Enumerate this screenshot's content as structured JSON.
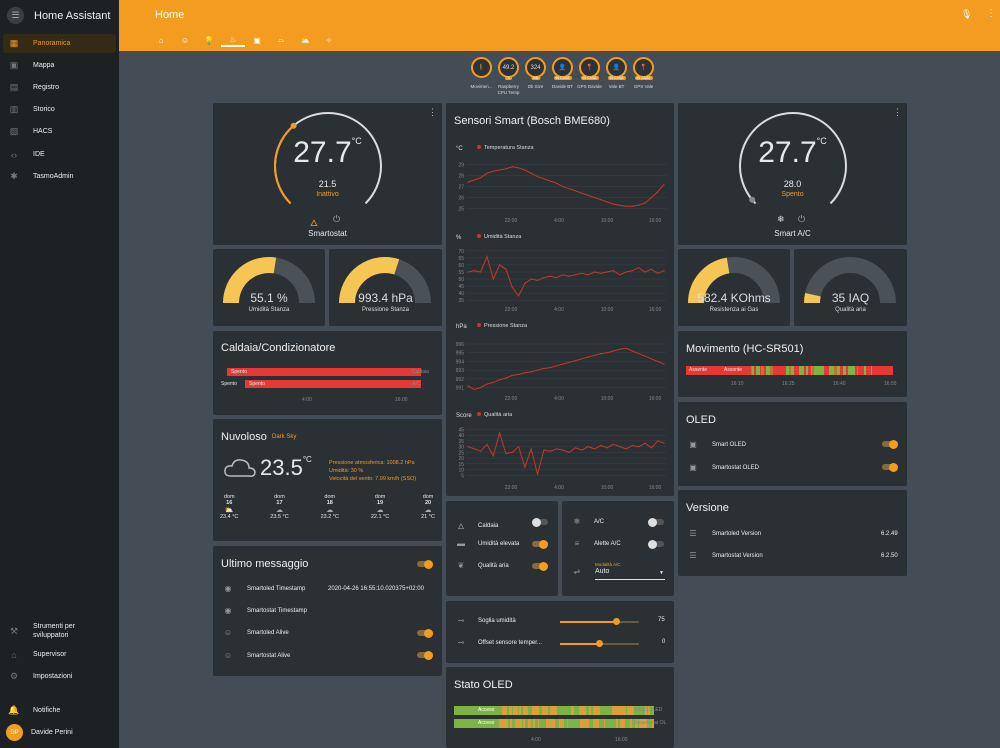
{
  "sidebar": {
    "title": "Home Assistant",
    "items": [
      {
        "icon": "dashboard-icon",
        "label": "Panoramica"
      },
      {
        "icon": "map-icon",
        "label": "Mappa"
      },
      {
        "icon": "logbook-icon",
        "label": "Registro"
      },
      {
        "icon": "history-icon",
        "label": "Storico"
      },
      {
        "icon": "hacs-icon",
        "label": "HACS"
      },
      {
        "icon": "ide-icon",
        "label": "IDE"
      },
      {
        "icon": "tasmota-icon",
        "label": "TasmoAdmin"
      }
    ],
    "bottom_items": [
      {
        "icon": "wrench-icon",
        "label": "Strumenti per sviluppatori"
      },
      {
        "icon": "supervisor-icon",
        "label": "Supervisor"
      },
      {
        "icon": "gear-icon",
        "label": "Impostazioni"
      },
      {
        "icon": "bell-icon",
        "label": "Notifiche"
      }
    ],
    "user": {
      "initials": "DP",
      "name": "Davide Perini"
    }
  },
  "topbar": {
    "title": "Home",
    "tabs": [
      "home-icon",
      "robot-icon",
      "bulb-icon",
      "thermostat-icon",
      "chart-icon",
      "router-icon",
      "weather-icon",
      "wand-icon"
    ]
  },
  "badges": [
    {
      "value": "🚶",
      "label": "",
      "name": "Movimen..."
    },
    {
      "value": "49.2",
      "label": "°C",
      "name": "Raspberry CPU Temp"
    },
    {
      "value": "324",
      "label": "MB",
      "name": "Db Size"
    },
    {
      "value": "👤",
      "label": "IN CASA",
      "name": "Davide BT"
    },
    {
      "value": "📍",
      "label": "IN CASA",
      "name": "GPS Davide"
    },
    {
      "value": "👤",
      "label": "IN CASA",
      "name": "Vale BT"
    },
    {
      "value": "📍",
      "label": "IN CASA",
      "name": "GPS Vale"
    }
  ],
  "colors": {
    "accent": "#f39c1f",
    "card": "#2b3035",
    "background": "#444d55",
    "series": "#c0392b",
    "yellow": "#f5c653",
    "green": "#7cb342",
    "red": "#e53935"
  },
  "thermostat1": {
    "temp": "27.7",
    "unit": "°C",
    "target": "21.5",
    "state": "Inattivo",
    "name": "Smartostat",
    "level": 0.35
  },
  "thermostat2": {
    "temp": "27.7",
    "unit": "°C",
    "target": "28.0",
    "state": "Spento",
    "name": "Smart A/C",
    "level": 0.02
  },
  "gauges": [
    {
      "value": "55.1 %",
      "name": "Umidità Stanza",
      "level": 0.55
    },
    {
      "value": "993.4 hPa",
      "name": "Pressione Stanza",
      "level": 0.6
    },
    {
      "value": "582.4 KOhms",
      "name": "Resistenza ai Gas",
      "level": 0.45
    },
    {
      "value": "35 IAQ",
      "name": "Qualità aria",
      "level": 0.07
    }
  ],
  "caldaia": {
    "title": "Caldaia/Condizionatore",
    "rows": [
      {
        "label": "",
        "state": "Spento",
        "entity": "Caldaia"
      },
      {
        "label": "Spento",
        "state": "Spento",
        "entity": "A/C"
      }
    ],
    "x_ticks": [
      "4:00",
      "16:00"
    ]
  },
  "weather": {
    "title": "Nuvoloso",
    "source": "Dark Sky",
    "temp": "23.5",
    "unit": "°C",
    "pressure": "Pressione atmosferica: 1008.2 hPa",
    "humidity": "Umidità: 30 %",
    "wind": "Velocità del vento: 7.99 km/h (SSO)",
    "forecast": [
      {
        "day": "dom",
        "date": "16",
        "temp": "23.4 °C"
      },
      {
        "day": "dom",
        "date": "17",
        "temp": "23.5 °C"
      },
      {
        "day": "dom",
        "date": "18",
        "temp": "23.2 °C"
      },
      {
        "day": "dom",
        "date": "19",
        "temp": "22.1 °C"
      },
      {
        "day": "dom",
        "date": "20",
        "temp": "21 °C"
      }
    ]
  },
  "messages": {
    "title": "Ultimo messaggio",
    "rows": [
      {
        "icon": "eye-icon",
        "label": "Smartoled Timestamp",
        "value": "2020-04-26 16:55:10.020375+02:00"
      },
      {
        "icon": "eye-icon",
        "label": "Smartostat Timestamp",
        "value": ""
      },
      {
        "icon": "robot-icon",
        "label": "Smartoled Alive",
        "value": ""
      },
      {
        "icon": "robot-icon",
        "label": "Smartostat Alive",
        "value": ""
      }
    ]
  },
  "sensors": {
    "title": "Sensori Smart (Bosch BME680)"
  },
  "chart_data": [
    {
      "type": "line",
      "ylabel": "°C",
      "series": [
        {
          "name": "Temperatura Stanza"
        }
      ],
      "y_ticks": [
        "29",
        "28",
        "27",
        "26",
        "25"
      ],
      "x_ticks": [
        "22:00",
        "4:00",
        "10:00",
        "16:00"
      ],
      "ylim": [
        24.5,
        29.5
      ],
      "values": [
        27.4,
        27.6,
        27.8,
        28.2,
        28.4,
        28.5,
        28.6,
        28.8,
        28.7,
        28.5,
        28.2,
        27.9,
        27.7,
        27.5,
        27.3,
        27.0,
        26.8,
        26.6,
        26.4,
        26.2,
        26.0,
        25.8,
        25.6,
        25.4,
        25.3,
        25.2,
        25.2,
        25.3,
        25.5,
        26.0,
        26.5,
        27.2
      ]
    },
    {
      "type": "line",
      "ylabel": "%",
      "series": [
        {
          "name": "Umidità Stanza"
        }
      ],
      "y_ticks": [
        "70",
        "65",
        "60",
        "55",
        "50",
        "45",
        "40",
        "35"
      ],
      "x_ticks": [
        "22:00",
        "4:00",
        "10:00",
        "16:00"
      ],
      "ylim": [
        33,
        72
      ],
      "values": [
        55,
        56,
        55,
        66,
        50,
        60,
        57,
        44,
        38,
        47,
        50,
        49,
        51,
        52,
        51,
        53,
        52,
        53,
        54,
        53,
        55,
        54,
        55,
        56,
        53,
        55,
        56,
        58,
        55,
        57,
        54,
        56
      ]
    },
    {
      "type": "line",
      "ylabel": "hPa",
      "series": [
        {
          "name": "Pressione Stanza"
        }
      ],
      "y_ticks": [
        "996",
        "995",
        "994",
        "993",
        "992",
        "991"
      ],
      "x_ticks": [
        "22:00",
        "4:00",
        "10:00",
        "16:00"
      ],
      "ylim": [
        990.5,
        996.8
      ],
      "values": [
        991.2,
        990.8,
        991.0,
        991.4,
        991.6,
        991.9,
        992.1,
        992.4,
        992.5,
        992.7,
        992.8,
        993.0,
        993.2,
        993.3,
        993.5,
        993.7,
        993.9,
        994.1,
        994.3,
        994.5,
        994.7,
        994.9,
        995.0,
        995.2,
        995.4,
        995.5,
        995.2,
        994.9,
        994.6,
        994.3,
        994.0,
        993.7
      ]
    },
    {
      "type": "line",
      "ylabel": "Score",
      "series": [
        {
          "name": "Qualità aria"
        }
      ],
      "y_ticks": [
        "45",
        "40",
        "35",
        "30",
        "25",
        "20",
        "15",
        "10",
        "5"
      ],
      "x_ticks": [
        "22:00",
        "4:00",
        "10:00",
        "16:00"
      ],
      "ylim": [
        0,
        48
      ],
      "values": [
        30,
        28,
        26,
        32,
        22,
        42,
        24,
        25,
        30,
        12,
        28,
        6,
        27,
        26,
        28,
        27,
        25,
        29,
        27,
        30,
        28,
        31,
        29,
        32,
        30,
        28,
        31,
        30,
        33,
        29,
        35,
        33
      ]
    }
  ],
  "switches_left": [
    {
      "icon": "fire-icon",
      "label": "Caldaia",
      "on": false
    },
    {
      "icon": "kettle-icon",
      "label": "Umidità elevata",
      "on": true
    },
    {
      "icon": "leaf-icon",
      "label": "Qualità aria",
      "on": true
    }
  ],
  "switches_right": [
    {
      "icon": "snowflake-icon",
      "label": "A/C",
      "on": false
    },
    {
      "icon": "fan-icon",
      "label": "Alette A/C",
      "on": false
    },
    {
      "icon": "mode-icon",
      "label": "Modalità A/C",
      "value": "Auto"
    }
  ],
  "sliders": [
    {
      "label": "Soglia umidità",
      "value": "75",
      "level": 0.72
    },
    {
      "label": "Offset sensore temper...",
      "value": "0",
      "level": 0.5
    }
  ],
  "stato_oled": {
    "title": "Stato OLED",
    "rows": [
      {
        "state": "Acceso",
        "entity": "Smart OLED"
      },
      {
        "state": "Acceso",
        "entity": "Smartostat OL"
      }
    ],
    "x_ticks": [
      "4:00",
      "16:00"
    ]
  },
  "movimento": {
    "title": "Movimento (HC-SR501)",
    "row": {
      "label": "Assente",
      "state": "Assente"
    },
    "x_ticks": [
      "16:10",
      "16:25",
      "16:40",
      "16:55"
    ]
  },
  "oled": {
    "title": "OLED",
    "rows": [
      {
        "icon": "monitor-icon",
        "label": "Smart OLED",
        "on": true
      },
      {
        "icon": "monitor-icon",
        "label": "Smartostat OLED",
        "on": true
      }
    ]
  },
  "versione": {
    "title": "Versione",
    "rows": [
      {
        "icon": "account-icon",
        "label": "Smartoled Version",
        "value": "6.2.49"
      },
      {
        "icon": "account-icon",
        "label": "Smartostat Version",
        "value": "6.2.50"
      }
    ]
  }
}
